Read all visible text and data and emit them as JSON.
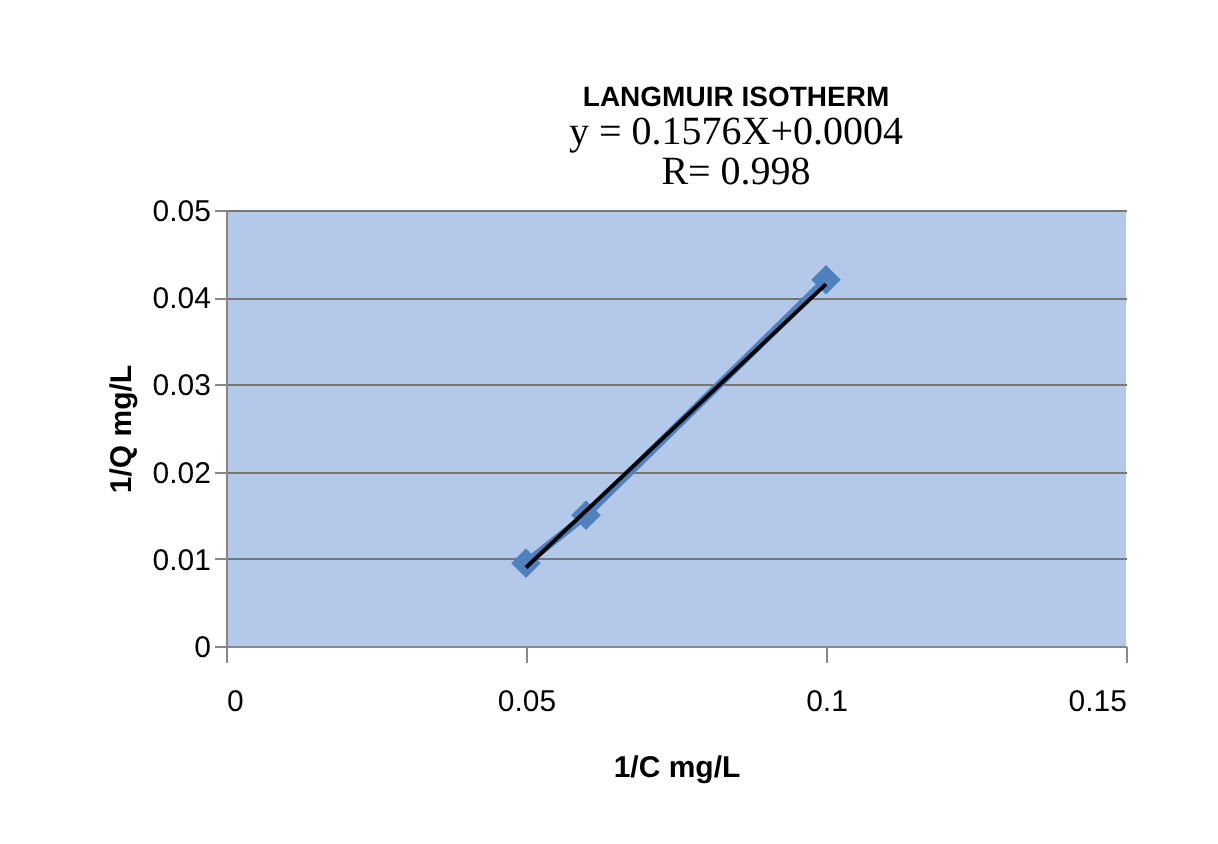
{
  "chart_data": {
    "type": "line",
    "title": "LANGMUIR ISOTHERM",
    "annotations": [
      "y = 0.1576X+0.0004",
      "R= 0.998"
    ],
    "xlabel": "1/C   mg/L",
    "ylabel": "1/Q mg/L",
    "series": [
      {
        "color": "#4f81bd",
        "x": [
          0.05,
          0.06,
          0.1
        ],
        "values": [
          0.0095,
          0.015,
          0.042
        ],
        "marker": "diamond"
      },
      {
        "type": "line",
        "color": "#000000",
        "x": [
          0.05,
          0.1
        ],
        "values": [
          0.009,
          0.0415
        ],
        "marker": "none"
      }
    ],
    "xlim": [
      0,
      0.15
    ],
    "xticks": [
      0,
      0.05,
      0.1,
      0.15
    ],
    "ylim": [
      0,
      0.05
    ],
    "yticks": [
      0,
      0.01,
      0.02,
      0.03,
      0.04,
      0.05
    ],
    "grid": "y"
  }
}
